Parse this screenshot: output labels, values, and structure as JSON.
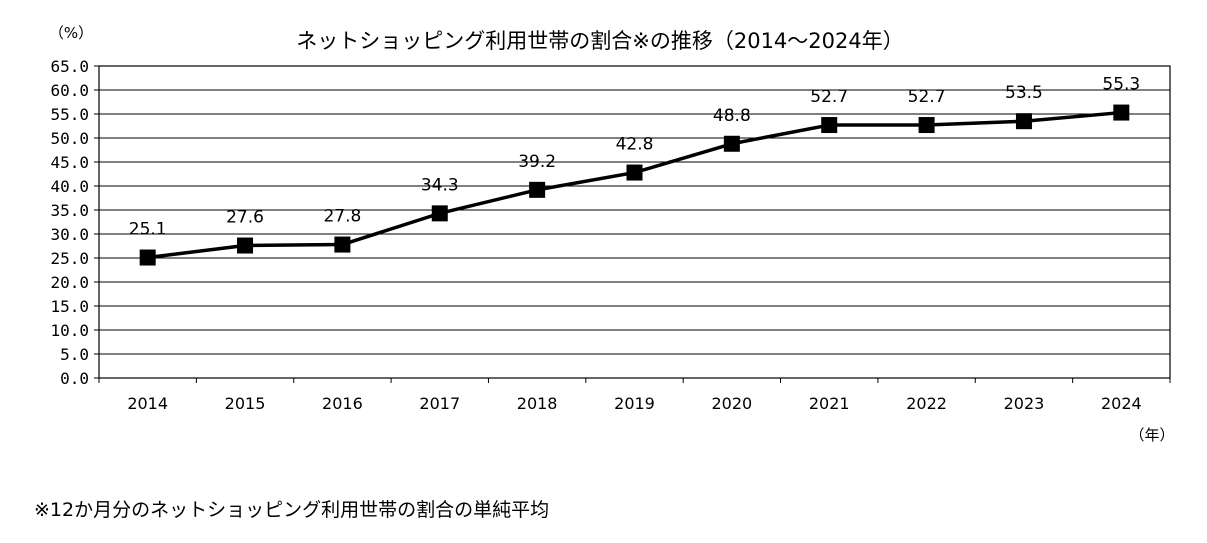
{
  "chart_data": {
    "type": "line",
    "title": "ネットショッピング利用世帯の割合※の推移（2014～2024年）",
    "ylabel": "（%）",
    "xlabel": "（年）",
    "ylim": [
      0,
      65
    ],
    "y_ticks": [
      "0.0",
      "5.0",
      "10.0",
      "15.0",
      "20.0",
      "25.0",
      "30.0",
      "35.0",
      "40.0",
      "45.0",
      "50.0",
      "55.0",
      "60.0",
      "65.0"
    ],
    "categories": [
      "2014",
      "2015",
      "2016",
      "2017",
      "2018",
      "2019",
      "2020",
      "2021",
      "2022",
      "2023",
      "2024"
    ],
    "series": [
      {
        "values": [
          25.1,
          27.6,
          27.8,
          34.3,
          39.2,
          42.8,
          48.8,
          52.7,
          52.7,
          53.5,
          55.3
        ],
        "labels": [
          "25.1",
          "27.6",
          "27.8",
          "34.3",
          "39.2",
          "42.8",
          "48.8",
          "52.7",
          "52.7",
          "53.5",
          "55.3"
        ],
        "color": "#000000",
        "marker": "square"
      }
    ],
    "grid": true,
    "legend": "none"
  },
  "footnote": "※12か月分のネットショッピング利用世帯の割合の単純平均"
}
